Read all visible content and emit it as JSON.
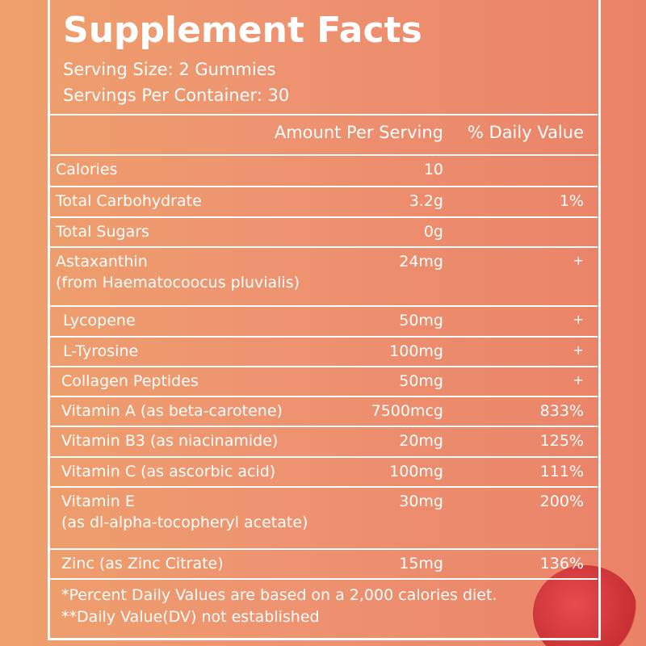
{
  "header": {
    "title": "Supplement Facts",
    "serving_size": "Serving Size: 2 Gummies",
    "servings_per_container": "Servings Per Container: 30"
  },
  "table": {
    "columns": [
      "Amount Per Serving",
      "% Daily Value"
    ],
    "rows": [
      {
        "name": "Calories",
        "amount": "10"
      },
      {
        "name": "Total Carbohydrate",
        "amount": "3.2g",
        "dv": "1%"
      },
      {
        "name": "Total Sugars",
        "amount": "0g"
      },
      {
        "name": "Astaxanthin",
        "note": "(from Haematocoocus pluvialis)",
        "amount": "24mg",
        "dv": "+"
      },
      {
        "name": "Lycopene",
        "amount": "50mg",
        "dv": "+"
      },
      {
        "name": "L-Tyrosine",
        "amount": "100mg",
        "dv": "+"
      },
      {
        "name": "Collagen Peptides",
        "amount": "50mg",
        "dv": "+"
      },
      {
        "name": "Vitamin A (as beta-carotene)",
        "amount": "7500mcg",
        "dv": "833%"
      },
      {
        "name": "Vitamin B3 (as niacinamide)",
        "amount": "20mg",
        "dv": "125%"
      },
      {
        "name": "Vitamin C (as ascorbic acid)",
        "amount": "100mg",
        "dv": "111%"
      },
      {
        "name": "Vitamin E",
        "note": "(as dl-alpha-tocopheryl acetate)",
        "amount": "30mg",
        "dv": "200%"
      },
      {
        "name": "Zinc (as Zinc Citrate)",
        "amount": "15mg",
        "dv": "136%"
      }
    ]
  },
  "footnotes": [
    "*Percent Daily Values are based on a 2,000 calories diet.",
    "**Daily Value(DV) not established"
  ]
}
